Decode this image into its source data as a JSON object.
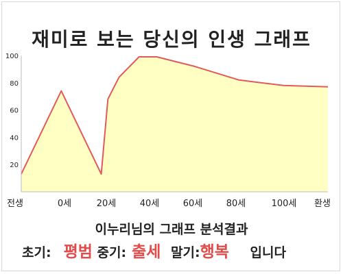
{
  "title": "재미로 보는 당신의 인생 그래프",
  "summary": "이누리님의 그래프 분석결과",
  "result": {
    "early_label": "초기:",
    "early_value": "평범",
    "mid_label": "중기:",
    "mid_value": "출세",
    "late_label": "말기:",
    "late_value": "행복",
    "suffix": "입니다"
  },
  "colors": {
    "line": "#e05a5a",
    "fill": "#ffffc4",
    "highlight": "#e34b4b"
  },
  "chart_data": {
    "type": "area",
    "categories": [
      "전생",
      "0세",
      "20세",
      "40세",
      "60세",
      "80세",
      "100세",
      "환생"
    ],
    "yticks": [
      20,
      40,
      60,
      80,
      100
    ],
    "ylim": [
      0,
      100
    ],
    "grid": false,
    "x": [
      -18,
      0,
      18,
      21,
      26,
      35,
      43,
      60,
      80,
      100,
      120
    ],
    "values": [
      13,
      74,
      13,
      68,
      84,
      99,
      99,
      92,
      82,
      78,
      77
    ]
  }
}
